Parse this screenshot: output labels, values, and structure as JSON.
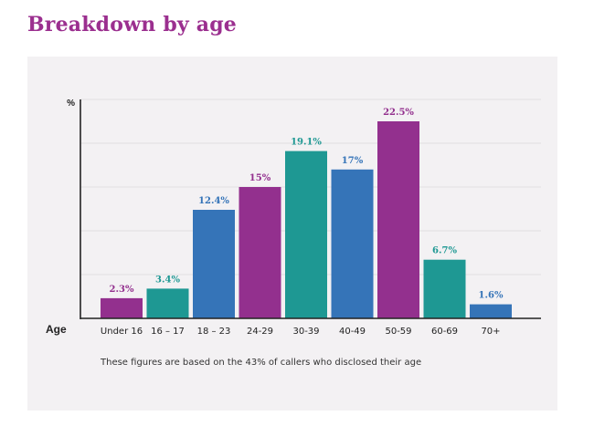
{
  "page_title": "Breakdown by age",
  "chart_data": {
    "type": "bar",
    "title": "",
    "ylabel": "%",
    "xlabel": "Age",
    "ylim": [
      0,
      25
    ],
    "grid": true,
    "legend": "none",
    "categories": [
      "Under 16",
      "16 – 17",
      "18 – 23",
      "24-29",
      "30-39",
      "40-49",
      "50-59",
      "60-69",
      "70+"
    ],
    "values": [
      2.3,
      3.4,
      12.4,
      15,
      19.1,
      17,
      22.5,
      6.7,
      1.6
    ],
    "value_labels": [
      "2.3%",
      "3.4%",
      "12.4%",
      "15%",
      "19.1%",
      "17%",
      "22.5%",
      "6.7%",
      "1.6%"
    ],
    "bar_colors": [
      "#93308e",
      "#1e9893",
      "#3574b8",
      "#93308e",
      "#1e9893",
      "#3574b8",
      "#93308e",
      "#1e9893",
      "#3574b8"
    ],
    "label_colors": [
      "#93308e",
      "#1e9893",
      "#3574b8",
      "#93308e",
      "#1e9893",
      "#3574b8",
      "#93308e",
      "#1e9893",
      "#3574b8"
    ],
    "footnote": "These figures are based on the 43% of callers who disclosed their age"
  }
}
